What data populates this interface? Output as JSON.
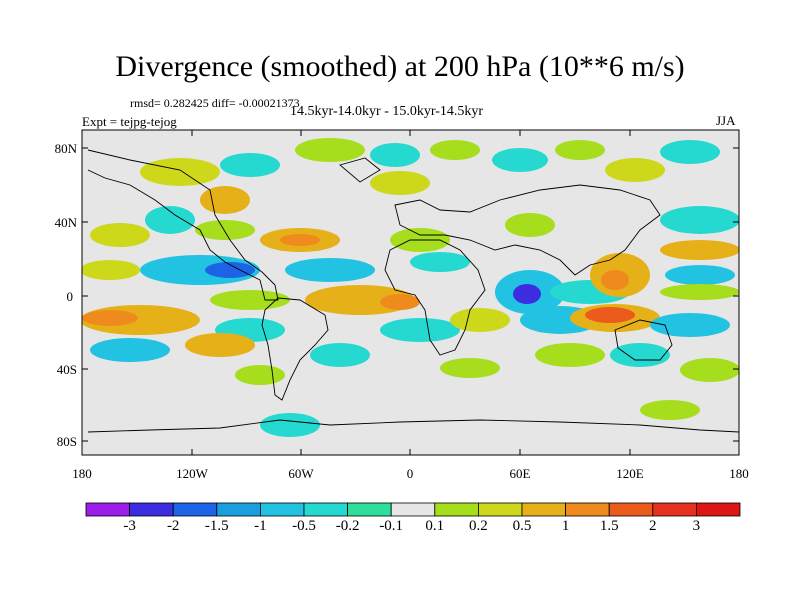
{
  "title": "Divergence (smoothed) at 200 hPa (10**6 m/s)",
  "stats": "rmsd= 0.282425 diff= -0.00021373",
  "experiment": "Expt = tejpg-tejog",
  "period": "14.5kyr-14.0kyr - 15.0kyr-14.5kyr",
  "season": "JJA",
  "lat_labels": [
    "80N",
    "40N",
    "0",
    "40S",
    "80S"
  ],
  "lon_labels": [
    "180",
    "120W",
    "60W",
    "0",
    "60E",
    "120E",
    "180"
  ],
  "colorbar": {
    "labels": [
      "-3",
      "-2",
      "-1.5",
      "-1",
      "-0.5",
      "-0.2",
      "-0.1",
      "0.1",
      "0.2",
      "0.5",
      "1",
      "1.5",
      "2",
      "3"
    ],
    "colors": [
      "#9b1fe8",
      "#3c2ee0",
      "#1c63e6",
      "#1a9ee0",
      "#22c2e3",
      "#25d9d0",
      "#2ddf9a",
      "#e6e6e6",
      "#a6dd1c",
      "#cdd81a",
      "#e5b018",
      "#ef8a1d",
      "#ec5a1c",
      "#e63020",
      "#dd1515"
    ]
  }
}
